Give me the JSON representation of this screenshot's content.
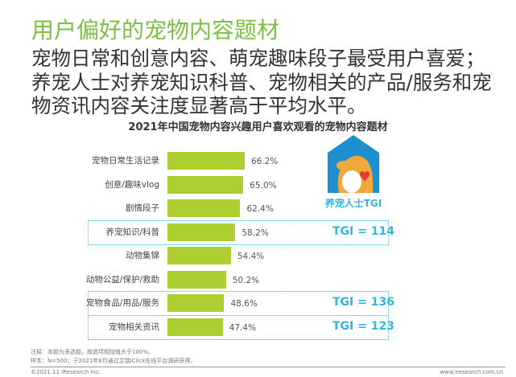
{
  "title": "用户偏好的宠物内容题材",
  "subtitle": "宠物日常和创意内容、萌宠趣味段子最受用户喜爱；养宠人士对养宠知识科普、宠物相关的产品/服务和宠物资讯内容关注度显著高于平均水平。",
  "logo_label": "养宠人士TGI",
  "chart_data": {
    "type": "bar",
    "orientation": "horizontal",
    "title": "2021年中国宠物内容兴趣用户喜欢观看的宠物内容题材",
    "categories": [
      "宠物日常生活记录",
      "创意/趣味vlog",
      "剧情段子",
      "养宠知识/科普",
      "动物集锦",
      "动物公益/保护/救助",
      "宠物食品/用品/服务",
      "宠物相关资讯"
    ],
    "values": [
      66.2,
      65.0,
      62.4,
      58.2,
      54.4,
      50.2,
      48.6,
      47.4
    ],
    "value_labels": [
      "66.2%",
      "65.0%",
      "62.4%",
      "58.2%",
      "54.4%",
      "50.2%",
      "48.6%",
      "47.4%"
    ],
    "tgi": [
      null,
      null,
      null,
      "TGI = 114",
      null,
      null,
      "TGI = 136",
      "TGI = 123"
    ],
    "unit": "%",
    "bar_color": "#adcf32",
    "highlight_color": "#35b4e0"
  },
  "notes": [
    "注释：本题为多选题，故选项相加值大于100%。",
    "样本：N=500；于2021年8月通过艾瑞iClick在线平台调研获得。"
  ],
  "footer": {
    "copyright": "©2021.11 iResearch Inc.",
    "url": "www.iresearch.com.cn"
  }
}
